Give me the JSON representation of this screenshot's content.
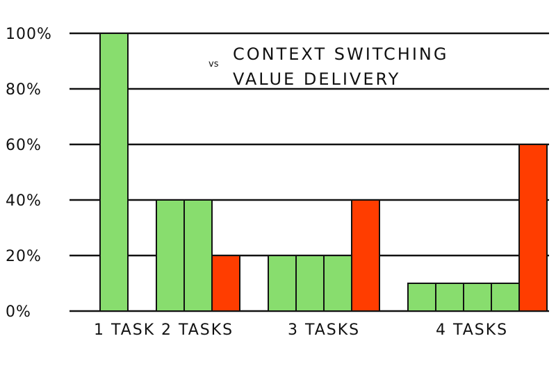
{
  "colors": {
    "value_delivery": "#88dd6e",
    "context_switching": "#ff3d00",
    "grid": "#111111",
    "bar_stroke": "#111111"
  },
  "legend": {
    "vs": "vs",
    "context_switching": "CONTEXT SWITCHING",
    "value_delivery": "VALUE DELIVERY"
  },
  "chart_data": {
    "type": "bar",
    "title": "",
    "xlabel": "",
    "ylabel": "",
    "ylim": [
      0,
      100
    ],
    "y_ticks": [
      "0%",
      "20%",
      "40%",
      "60%",
      "80%",
      "100%"
    ],
    "grid": true,
    "legend_position": "top-center",
    "groups": [
      {
        "label": "1 TASK",
        "bars": [
          {
            "series": "value_delivery",
            "value": 100
          }
        ]
      },
      {
        "label": "2 TASKS",
        "bars": [
          {
            "series": "value_delivery",
            "value": 40
          },
          {
            "series": "value_delivery",
            "value": 40
          },
          {
            "series": "context_switching",
            "value": 20
          }
        ]
      },
      {
        "label": "3 TASKS",
        "bars": [
          {
            "series": "value_delivery",
            "value": 20
          },
          {
            "series": "value_delivery",
            "value": 20
          },
          {
            "series": "value_delivery",
            "value": 20
          },
          {
            "series": "context_switching",
            "value": 40
          }
        ]
      },
      {
        "label": "4 TASKS",
        "bars": [
          {
            "series": "value_delivery",
            "value": 10
          },
          {
            "series": "value_delivery",
            "value": 10
          },
          {
            "series": "value_delivery",
            "value": 10
          },
          {
            "series": "value_delivery",
            "value": 10
          },
          {
            "series": "context_switching",
            "value": 60
          }
        ]
      }
    ]
  }
}
